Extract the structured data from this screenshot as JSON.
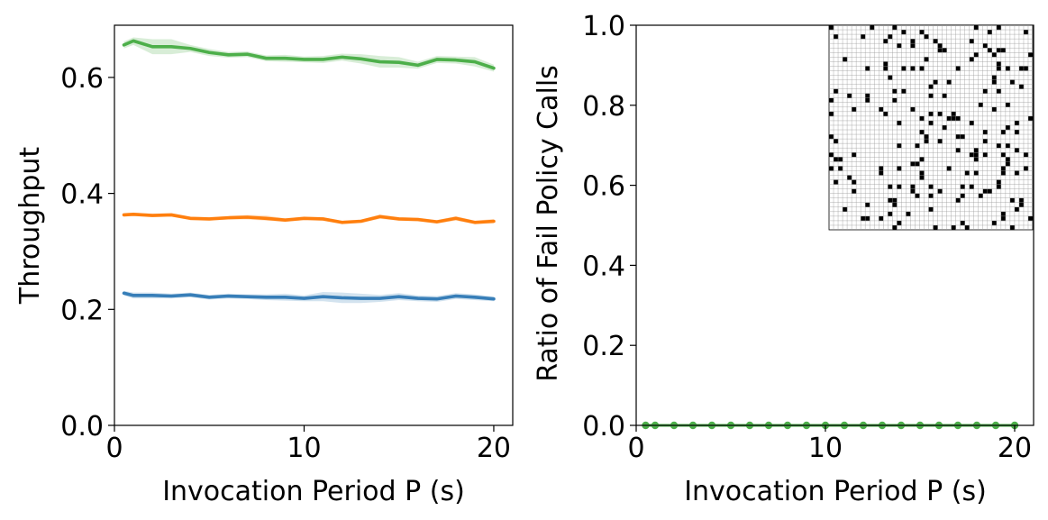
{
  "chart_data": [
    {
      "type": "line",
      "title": "",
      "xlabel": "Invocation Period P (s)",
      "ylabel": "Throughput",
      "xlim": [
        0,
        21
      ],
      "ylim": [
        0,
        0.69
      ],
      "xticks": [
        0,
        10,
        20
      ],
      "yticks": [
        0.0,
        0.2,
        0.4,
        0.6
      ],
      "xtick_labels": [
        "0",
        "10",
        "20"
      ],
      "ytick_labels": [
        "0.0",
        "0.2",
        "0.4",
        "0.6"
      ],
      "grid": false,
      "legend": "none",
      "x": [
        0.5,
        1,
        2,
        3,
        4,
        5,
        6,
        7,
        8,
        9,
        10,
        11,
        12,
        13,
        14,
        15,
        16,
        17,
        18,
        19,
        20
      ],
      "series": [
        {
          "name": "green",
          "color": "#4daf4a",
          "values": [
            0.656,
            0.663,
            0.653,
            0.653,
            0.65,
            0.643,
            0.639,
            0.64,
            0.633,
            0.633,
            0.631,
            0.631,
            0.635,
            0.632,
            0.627,
            0.626,
            0.621,
            0.631,
            0.63,
            0.627,
            0.616
          ],
          "lower": [
            0.65,
            0.656,
            0.64,
            0.64,
            0.644,
            0.637,
            0.634,
            0.635,
            0.628,
            0.627,
            0.626,
            0.625,
            0.629,
            0.624,
            0.617,
            0.617,
            0.615,
            0.625,
            0.624,
            0.619,
            0.61
          ],
          "upper": [
            0.662,
            0.669,
            0.666,
            0.666,
            0.656,
            0.649,
            0.644,
            0.645,
            0.638,
            0.639,
            0.636,
            0.637,
            0.641,
            0.64,
            0.637,
            0.635,
            0.627,
            0.637,
            0.636,
            0.635,
            0.622
          ]
        },
        {
          "name": "orange",
          "color": "#ff7f0e",
          "values": [
            0.363,
            0.364,
            0.362,
            0.363,
            0.357,
            0.356,
            0.358,
            0.359,
            0.357,
            0.354,
            0.357,
            0.356,
            0.35,
            0.352,
            0.36,
            0.356,
            0.355,
            0.351,
            0.357,
            0.35,
            0.352
          ],
          "lower": [
            0.36,
            0.361,
            0.359,
            0.36,
            0.354,
            0.353,
            0.355,
            0.355,
            0.353,
            0.351,
            0.354,
            0.353,
            0.347,
            0.349,
            0.356,
            0.353,
            0.352,
            0.348,
            0.353,
            0.347,
            0.348
          ],
          "upper": [
            0.366,
            0.367,
            0.365,
            0.366,
            0.36,
            0.359,
            0.361,
            0.363,
            0.362,
            0.357,
            0.36,
            0.359,
            0.353,
            0.355,
            0.364,
            0.359,
            0.358,
            0.354,
            0.361,
            0.353,
            0.356
          ]
        },
        {
          "name": "blue",
          "color": "#377eb8",
          "values": [
            0.228,
            0.224,
            0.224,
            0.223,
            0.225,
            0.221,
            0.223,
            0.222,
            0.221,
            0.221,
            0.219,
            0.222,
            0.22,
            0.219,
            0.219,
            0.222,
            0.219,
            0.218,
            0.223,
            0.221,
            0.218
          ],
          "lower": [
            0.224,
            0.219,
            0.219,
            0.219,
            0.221,
            0.217,
            0.219,
            0.218,
            0.216,
            0.215,
            0.214,
            0.214,
            0.211,
            0.211,
            0.213,
            0.216,
            0.214,
            0.213,
            0.218,
            0.216,
            0.214
          ],
          "upper": [
            0.232,
            0.229,
            0.229,
            0.227,
            0.229,
            0.225,
            0.227,
            0.226,
            0.226,
            0.227,
            0.224,
            0.23,
            0.229,
            0.227,
            0.225,
            0.228,
            0.224,
            0.223,
            0.228,
            0.226,
            0.222
          ]
        }
      ]
    },
    {
      "type": "scatter",
      "title": "",
      "xlabel": "Invocation Period P (s)",
      "ylabel": "Ratio of Fail Policy Calls",
      "xlim": [
        0,
        21
      ],
      "ylim": [
        0,
        1.0
      ],
      "xticks": [
        0,
        10,
        20
      ],
      "yticks": [
        0.0,
        0.2,
        0.4,
        0.6,
        0.8,
        1.0
      ],
      "xtick_labels": [
        "0",
        "10",
        "20"
      ],
      "ytick_labels": [
        "0.0",
        "0.2",
        "0.4",
        "0.6",
        "0.8",
        "1.0"
      ],
      "grid": false,
      "legend": "none",
      "inset": "occupancy-grid map (top-right)",
      "series": [
        {
          "name": "green",
          "color": "#4daf4a",
          "x": [
            0.5,
            1,
            2,
            3,
            4,
            5,
            6,
            7,
            8,
            9,
            10,
            11,
            12,
            13,
            14,
            15,
            16,
            17,
            18,
            19,
            20
          ],
          "values": [
            0,
            0,
            0,
            0,
            0,
            0,
            0,
            0,
            0,
            0,
            0,
            0,
            0,
            0,
            0,
            0,
            0,
            0,
            0,
            0,
            0
          ]
        }
      ]
    }
  ]
}
